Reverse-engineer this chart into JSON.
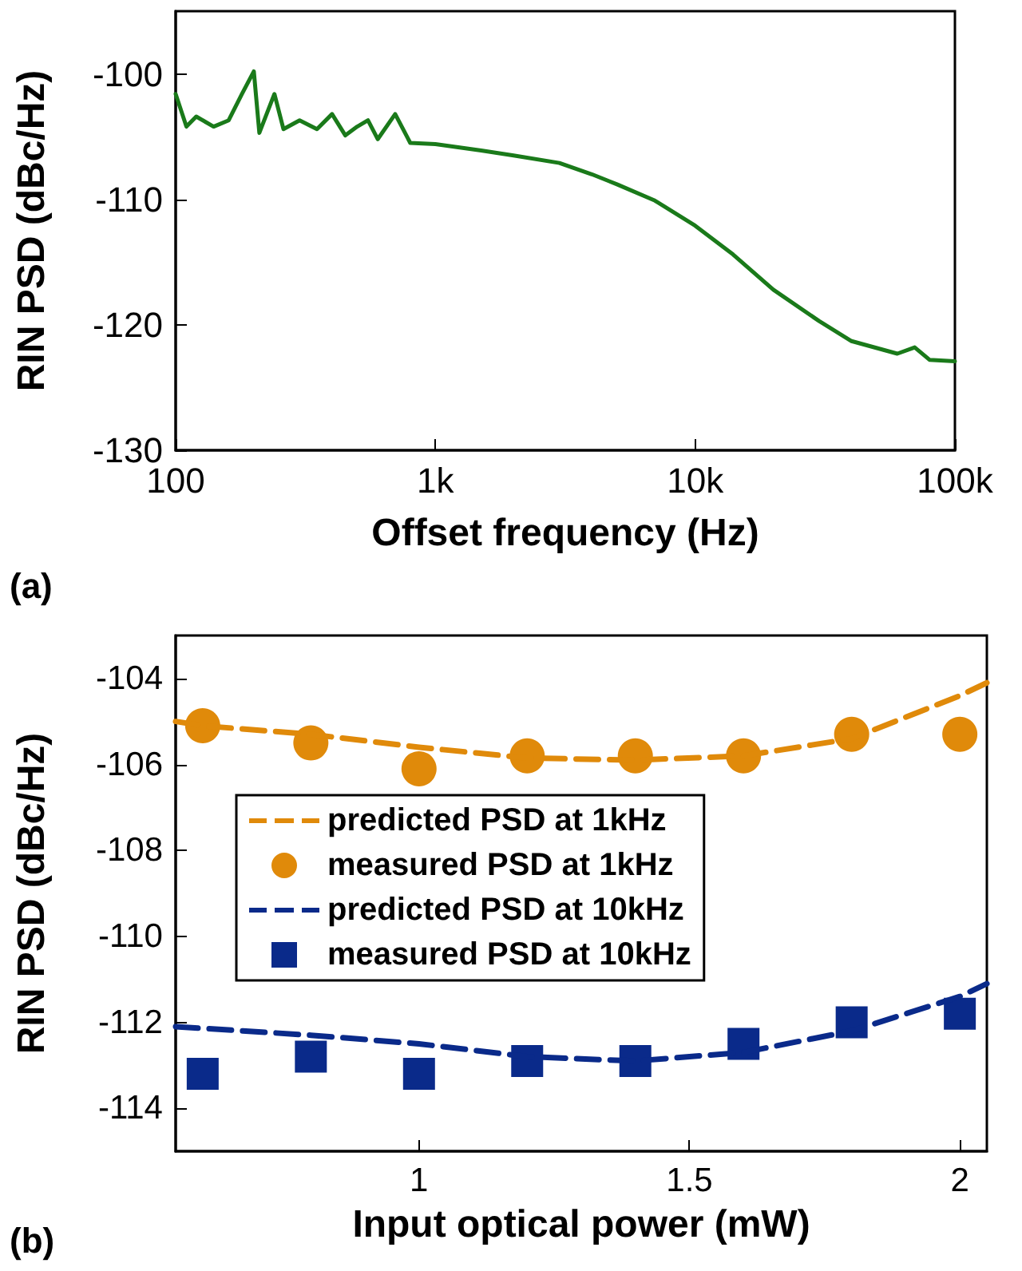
{
  "chart_data": [
    {
      "type": "line",
      "xlabel": "Offset frequency (Hz)",
      "ylabel": "RIN PSD (dBc/Hz)",
      "annotations": [
        "(a)"
      ],
      "log": "x",
      "xlim": [
        100,
        100000
      ],
      "ylim": [
        -130,
        -95
      ],
      "xticks": [
        {
          "value": 100,
          "label": "100"
        },
        {
          "value": 1000,
          "label": "1k"
        },
        {
          "value": 10000,
          "label": "10k"
        },
        {
          "value": 100000,
          "label": "100k"
        }
      ],
      "yticks": [
        -130,
        -120,
        -110,
        -100
      ],
      "grid": false,
      "legend": false,
      "marker": "none",
      "line_style": "solid",
      "series": [
        {
          "color": "#1a7a1a",
          "x": [
            100,
            110,
            120,
            140,
            160,
            180,
            200,
            210,
            240,
            260,
            300,
            350,
            400,
            450,
            500,
            550,
            600,
            700,
            800,
            1000,
            1500,
            2000,
            3000,
            4000,
            5000,
            7000,
            10000,
            14000,
            20000,
            30000,
            40000,
            60000,
            70000,
            80000,
            100000
          ],
          "values": [
            -101.6,
            -104.2,
            -103.4,
            -104.2,
            -103.7,
            -101.6,
            -99.8,
            -104.7,
            -101.6,
            -104.4,
            -103.7,
            -104.4,
            -103.2,
            -104.9,
            -104.2,
            -103.7,
            -105.2,
            -103.2,
            -105.5,
            -105.6,
            -106.1,
            -106.5,
            -107.1,
            -108.0,
            -108.8,
            -110.1,
            -112.1,
            -114.4,
            -117.2,
            -119.7,
            -121.3,
            -122.3,
            -121.8,
            -122.8,
            -122.9
          ]
        }
      ]
    },
    {
      "type": "line",
      "xlabel": "Input optical power (mW)",
      "ylabel": "RIN PSD (dBc/Hz)",
      "annotations": [
        "(b)"
      ],
      "xlim": [
        0.55,
        2.05
      ],
      "ylim": [
        -115,
        -103
      ],
      "xticks": [
        1,
        1.5,
        2
      ],
      "yticks": [
        -114,
        -112,
        -110,
        -108,
        -106,
        -104
      ],
      "grid": false,
      "legend": "center",
      "series": [
        {
          "name": "predicted PSD at 1kHz",
          "type": "line",
          "line_style": "dashed",
          "marker": "none",
          "color": "#e08a0a",
          "x": [
            0.55,
            0.6,
            0.8,
            1.0,
            1.2,
            1.4,
            1.6,
            1.8,
            2.0,
            2.05
          ],
          "values": [
            -105.0,
            -105.1,
            -105.3,
            -105.6,
            -105.85,
            -105.9,
            -105.8,
            -105.4,
            -104.4,
            -104.1
          ]
        },
        {
          "name": "measured PSD at 1kHz",
          "type": "scatter",
          "marker": "circle",
          "color": "#e08a0a",
          "x": [
            0.6,
            0.8,
            1.0,
            1.2,
            1.4,
            1.6,
            1.8,
            2.0
          ],
          "values": [
            -105.1,
            -105.5,
            -106.1,
            -105.8,
            -105.8,
            -105.8,
            -105.3,
            -105.3
          ]
        },
        {
          "name": "predicted PSD at 10kHz",
          "type": "line",
          "line_style": "dashed",
          "marker": "none",
          "color": "#0a2a8a",
          "x": [
            0.55,
            0.8,
            1.0,
            1.2,
            1.4,
            1.6,
            1.8,
            2.0,
            2.05
          ],
          "values": [
            -112.1,
            -112.3,
            -112.5,
            -112.8,
            -112.9,
            -112.7,
            -112.2,
            -111.4,
            -111.1
          ]
        },
        {
          "name": "measured PSD at 10kHz",
          "type": "scatter",
          "marker": "square",
          "color": "#0a2a8a",
          "x": [
            0.6,
            0.8,
            1.0,
            1.2,
            1.4,
            1.6,
            1.8,
            2.0
          ],
          "values": [
            -113.2,
            -112.8,
            -113.2,
            -112.9,
            -112.9,
            -112.5,
            -112.0,
            -111.8
          ]
        }
      ]
    }
  ]
}
